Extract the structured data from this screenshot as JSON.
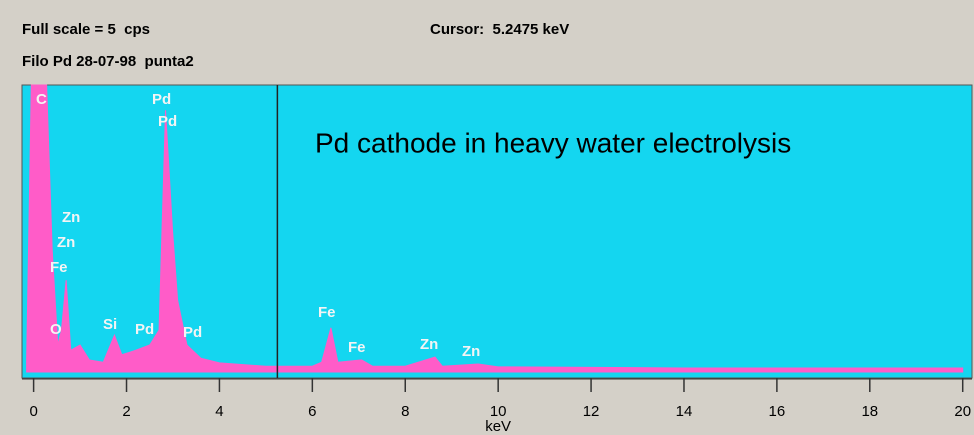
{
  "chart_data": {
    "type": "area",
    "full_scale": "Full scale = 5  cps",
    "cursor": {
      "value": 5.2475,
      "label": "Cursor:  5.2475 keV"
    },
    "title": "Filo Pd 28-07-98  punta2",
    "annotation": "Pd cathode in heavy water electrolysis",
    "xlabel": "keV",
    "color": "#ff5cc8",
    "background": "#14d6f0",
    "x": [
      -0.15,
      -0.05,
      0.28,
      0.4,
      0.52,
      0.6,
      0.7,
      0.8,
      1.0,
      1.2,
      1.5,
      1.74,
      1.9,
      2.2,
      2.5,
      2.7,
      2.84,
      2.99,
      3.1,
      3.3,
      3.6,
      4.0,
      5.0,
      6.0,
      6.2,
      6.4,
      6.55,
      7.06,
      7.3,
      8.0,
      8.64,
      8.8,
      9.57,
      10,
      14,
      20
    ],
    "values": [
      0.21,
      5,
      5,
      2.13,
      0.47,
      0.73,
      1.6,
      0.38,
      0.47,
      0.21,
      0.17,
      0.64,
      0.3,
      0.38,
      0.47,
      0.73,
      4.56,
      2.47,
      1.25,
      0.47,
      0.24,
      0.16,
      0.1,
      0.1,
      0.17,
      0.77,
      0.17,
      0.21,
      0.1,
      0.1,
      0.26,
      0.1,
      0.14,
      0.09,
      0.07,
      0.07
    ],
    "ylim": [
      0,
      5
    ],
    "xlim": [
      -0.25,
      20.2
    ],
    "xticks": [
      0,
      2,
      4,
      6,
      8,
      10,
      12,
      14,
      16,
      18,
      20
    ],
    "peak_labels": [
      "C",
      "Pd",
      "Pd",
      "Zn",
      "Zn",
      "Fe",
      "O",
      "Si",
      "Pd",
      "Pd",
      "Fe",
      "Fe",
      "Zn",
      "Zn"
    ]
  }
}
